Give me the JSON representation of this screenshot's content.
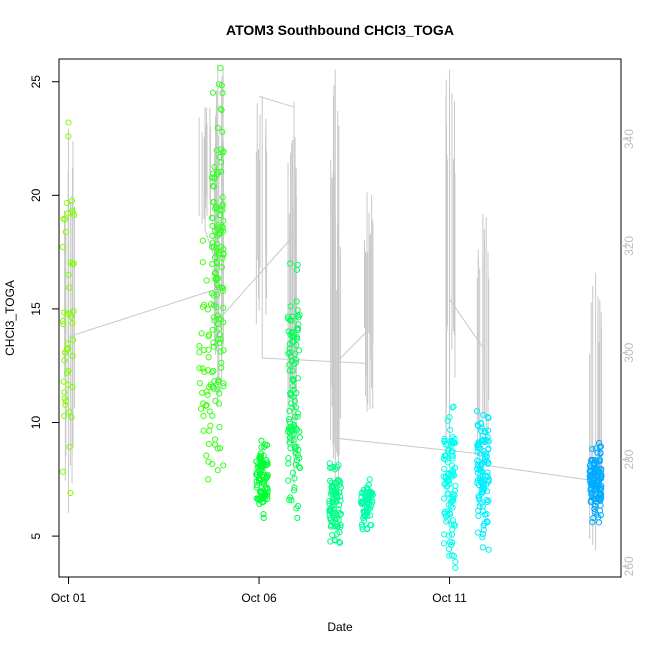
{
  "chart_data": {
    "type": "scatter",
    "title": "ATOM3 Southbound CHCl3_TOGA",
    "xlabel": "Date",
    "ylabel": "CHCl3_TOGA",
    "x_axis": {
      "type": "date",
      "range": [
        "2017-09-30T18:00",
        "2017-10-15T12:00"
      ],
      "ticks": [
        {
          "value": "2017-10-01T00:00",
          "label": "Oct 01"
        },
        {
          "value": "2017-10-06T00:00",
          "label": "Oct 06"
        },
        {
          "value": "2017-10-11T00:00",
          "label": "Oct 11"
        }
      ]
    },
    "y_axis_left": {
      "range": [
        3.2,
        26.0
      ],
      "ticks": [
        {
          "value": 5,
          "label": "5"
        },
        {
          "value": 10,
          "label": "10"
        },
        {
          "value": 15,
          "label": "15"
        },
        {
          "value": 20,
          "label": "20"
        },
        {
          "value": 25,
          "label": "25"
        }
      ]
    },
    "y_axis_right": {
      "range": [
        258,
        355
      ],
      "ticks": [
        {
          "value": 260,
          "label": "260"
        },
        {
          "value": 280,
          "label": "280"
        },
        {
          "value": 300,
          "label": "300"
        },
        {
          "value": 320,
          "label": "320"
        },
        {
          "value": 340,
          "label": "340"
        }
      ]
    },
    "grid": false,
    "legend": "none",
    "point_groups": [
      {
        "x": "2017-10-01T00:00",
        "min": 6.9,
        "max": 23.2,
        "n": 48,
        "color": "#7fff00"
      },
      {
        "x": "2017-10-04T14:00",
        "min": 7.5,
        "max": 18.0,
        "n": 38,
        "color": "#44ff11"
      },
      {
        "x": "2017-10-04T22:00",
        "min": 7.9,
        "max": 25.6,
        "n": 130,
        "color": "#33ff22"
      },
      {
        "x": "2017-10-06T02:00",
        "min": 5.8,
        "max": 9.2,
        "n": 90,
        "color": "#00ff33"
      },
      {
        "x": "2017-10-06T22:00",
        "min": 5.8,
        "max": 17.0,
        "n": 110,
        "color": "#00ff55"
      },
      {
        "x": "2017-10-08T00:00",
        "min": 4.7,
        "max": 8.2,
        "n": 90,
        "color": "#00ff88"
      },
      {
        "x": "2017-10-08T20:00",
        "min": 5.3,
        "max": 7.5,
        "n": 70,
        "color": "#00ffaa"
      },
      {
        "x": "2017-10-11T00:00",
        "min": 3.6,
        "max": 10.7,
        "n": 100,
        "color": "#00ffee"
      },
      {
        "x": "2017-10-11T21:00",
        "min": 4.4,
        "max": 10.5,
        "n": 110,
        "color": "#00eeff"
      },
      {
        "x": "2017-10-14T20:00",
        "min": 5.6,
        "max": 9.1,
        "n": 130,
        "color": "#00aaff"
      }
    ],
    "right_series_segments": [
      {
        "x": [
          "2017-10-01T00:00",
          "2017-10-01T00:00"
        ],
        "y": [
          270,
          342
        ]
      },
      {
        "x": [
          "2017-10-01T00:00",
          "2017-10-04T22:00"
        ],
        "y": [
          303,
          312
        ]
      },
      {
        "x": [
          "2017-10-04T22:00",
          "2017-10-04T22:00"
        ],
        "y": [
          290,
          354
        ]
      },
      {
        "x": [
          "2017-10-04T14:00",
          "2017-10-04T14:00"
        ],
        "y": [
          323,
          346
        ]
      },
      {
        "x": [
          "2017-10-04T14:00",
          "2017-10-04T22:00"
        ],
        "y": [
          323,
          316
        ]
      },
      {
        "x": [
          "2017-10-04T22:00",
          "2017-10-06T22:00"
        ],
        "y": [
          306,
          322
        ]
      },
      {
        "x": [
          "2017-10-06T00:00",
          "2017-10-06T22:00"
        ],
        "y": [
          348,
          346
        ]
      },
      {
        "x": [
          "2017-10-06T02:00",
          "2017-10-06T02:00"
        ],
        "y": [
          299,
          348
        ]
      },
      {
        "x": [
          "2017-10-06T02:00",
          "2017-10-08T20:00"
        ],
        "y": [
          299,
          298
        ]
      },
      {
        "x": [
          "2017-10-06T22:00",
          "2017-10-06T22:00"
        ],
        "y": [
          275,
          347
        ]
      },
      {
        "x": [
          "2017-10-08T00:00",
          "2017-10-08T00:00"
        ],
        "y": [
          280,
          353
        ]
      },
      {
        "x": [
          "2017-10-08T00:00",
          "2017-10-08T00:00"
        ],
        "y": [
          275,
          326
        ]
      },
      {
        "x": [
          "2017-10-08T00:00",
          "2017-10-08T20:00"
        ],
        "y": [
          298,
          304
        ]
      },
      {
        "x": [
          "2017-10-08T20:00",
          "2017-10-08T20:00"
        ],
        "y": [
          289,
          330
        ]
      },
      {
        "x": [
          "2017-10-08T00:00",
          "2017-10-11T21:00"
        ],
        "y": [
          284,
          281
        ]
      },
      {
        "x": [
          "2017-10-11T00:00",
          "2017-10-11T00:00"
        ],
        "y": [
          280,
          353
        ]
      },
      {
        "x": [
          "2017-10-11T00:00",
          "2017-10-11T21:00"
        ],
        "y": [
          310,
          301
        ]
      },
      {
        "x": [
          "2017-10-11T21:00",
          "2017-10-11T21:00"
        ],
        "y": [
          275,
          326
        ]
      },
      {
        "x": [
          "2017-10-11T21:00",
          "2017-10-14T20:00"
        ],
        "y": [
          279,
          276
        ]
      },
      {
        "x": [
          "2017-10-14T20:00",
          "2017-10-14T20:00"
        ],
        "y": [
          263,
          315
        ]
      }
    ],
    "colors": {
      "right_series": "#c8c8c8",
      "right_axis": "#bdbdbd",
      "axis": "#000000",
      "background": "#ffffff"
    }
  }
}
